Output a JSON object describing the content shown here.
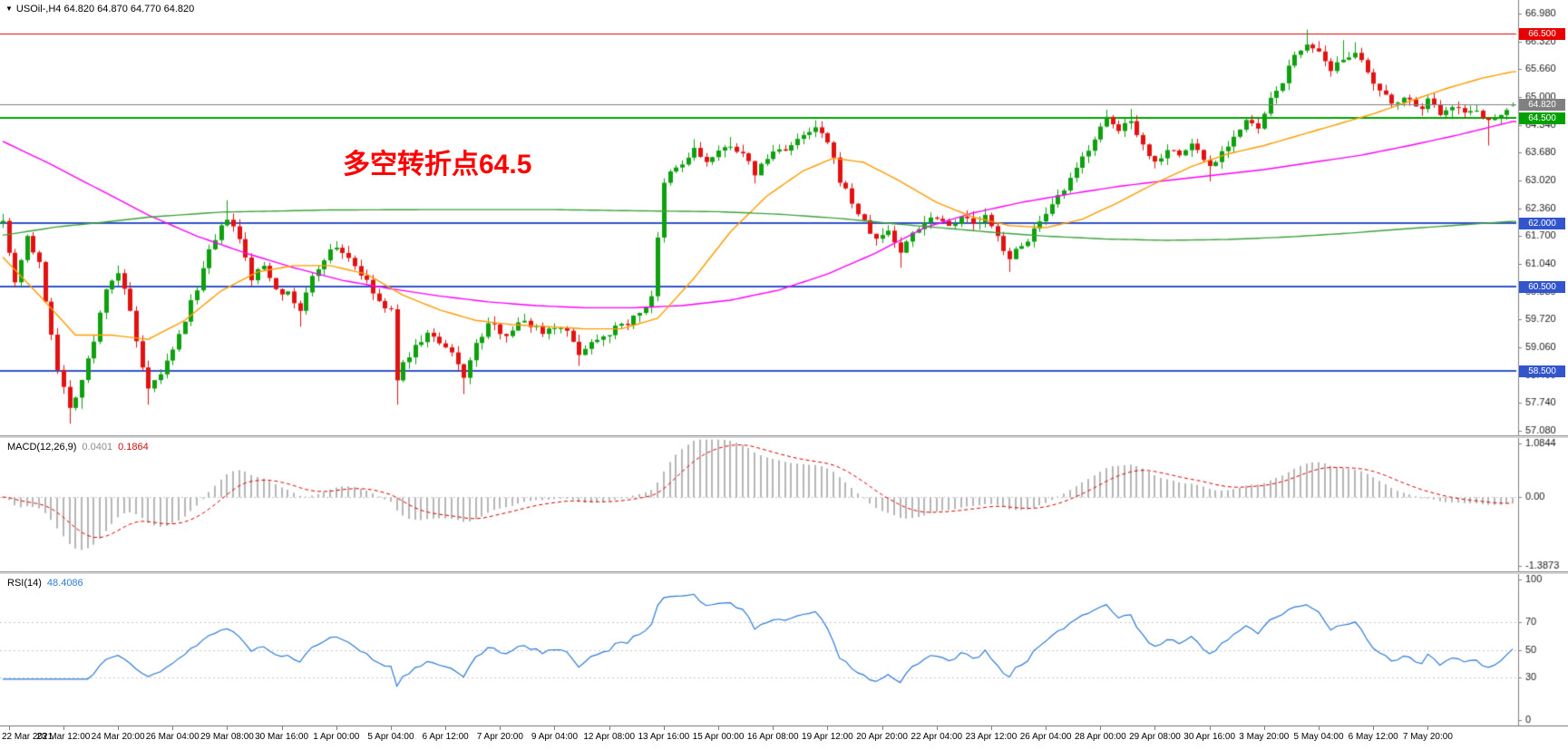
{
  "header": {
    "symbol_marker": "▼",
    "title": "USOil-,H4 64.820 64.870 64.770 64.820"
  },
  "annotation": {
    "text": "多空转折点64.5",
    "color": "#ff0000"
  },
  "chart_data": {
    "type": "candlestick",
    "symbol": "USOil-",
    "timeframe": "H4",
    "ohlc_display": {
      "open": "64.820",
      "high": "64.870",
      "low": "64.770",
      "close": "64.820"
    },
    "num_candles": 250,
    "seed": 7,
    "noise": 0.09,
    "wick": 0.17,
    "up_color": "#0ea00e",
    "down_color": "#e31212",
    "x_labels": [
      "22 Mar 2021",
      "23 Mar 12:00",
      "24 Mar 20:00",
      "26 Mar 04:00",
      "29 Mar 08:00",
      "30 Mar 16:00",
      "1 Apr 00:00",
      "5 Apr 04:00",
      "6 Apr 12:00",
      "7 Apr 20:00",
      "9 Apr 04:00",
      "12 Apr 08:00",
      "13 Apr 16:00",
      "15 Apr 00:00",
      "16 Apr 08:00",
      "19 Apr 12:00",
      "20 Apr 20:00",
      "22 Apr 04:00",
      "23 Apr 12:00",
      "26 Apr 04:00",
      "28 Apr 00:00",
      "29 Apr 08:00",
      "30 Apr 16:00",
      "3 May 20:00",
      "5 May 04:00",
      "6 May 12:00",
      "7 May 20:00"
    ],
    "label_start_index": 1,
    "label_every": 9,
    "close_anchors": [
      [
        0,
        62.15
      ],
      [
        1,
        61.3
      ],
      [
        2,
        60.65
      ],
      [
        4,
        61.7
      ],
      [
        6,
        61.0
      ],
      [
        7,
        60.2
      ],
      [
        9,
        58.6
      ],
      [
        11,
        57.6
      ],
      [
        13,
        58.3
      ],
      [
        15,
        59.2
      ],
      [
        17,
        60.5
      ],
      [
        19,
        60.85
      ],
      [
        21,
        59.9
      ],
      [
        23,
        58.5
      ],
      [
        24,
        58.0
      ],
      [
        26,
        58.45
      ],
      [
        28,
        58.95
      ],
      [
        31,
        60.1
      ],
      [
        34,
        61.3
      ],
      [
        37,
        62.15
      ],
      [
        39,
        61.6
      ],
      [
        41,
        60.7
      ],
      [
        43,
        61.0
      ],
      [
        45,
        60.5
      ],
      [
        47,
        60.3
      ],
      [
        49,
        59.95
      ],
      [
        51,
        60.7
      ],
      [
        53,
        61.2
      ],
      [
        55,
        61.45
      ],
      [
        57,
        61.2
      ],
      [
        59,
        60.8
      ],
      [
        61,
        60.35
      ],
      [
        63,
        59.95
      ],
      [
        64,
        59.9
      ],
      [
        65,
        58.35
      ],
      [
        67,
        58.9
      ],
      [
        70,
        59.4
      ],
      [
        73,
        59.0
      ],
      [
        74,
        58.9
      ],
      [
        76,
        58.4
      ],
      [
        78,
        59.1
      ],
      [
        80,
        59.6
      ],
      [
        83,
        59.4
      ],
      [
        86,
        59.7
      ],
      [
        89,
        59.45
      ],
      [
        92,
        59.6
      ],
      [
        95,
        58.95
      ],
      [
        98,
        59.3
      ],
      [
        101,
        59.5
      ],
      [
        104,
        59.75
      ],
      [
        106,
        60.05
      ],
      [
        107,
        60.3
      ],
      [
        109,
        62.9
      ],
      [
        110,
        63.2
      ],
      [
        112,
        63.4
      ],
      [
        114,
        63.75
      ],
      [
        116,
        63.45
      ],
      [
        118,
        63.65
      ],
      [
        120,
        63.9
      ],
      [
        122,
        63.6
      ],
      [
        124,
        63.2
      ],
      [
        127,
        63.7
      ],
      [
        130,
        63.85
      ],
      [
        132,
        64.05
      ],
      [
        134,
        64.25
      ],
      [
        136,
        63.9
      ],
      [
        138,
        63.05
      ],
      [
        140,
        62.5
      ],
      [
        142,
        62.0
      ],
      [
        144,
        61.6
      ],
      [
        146,
        61.85
      ],
      [
        148,
        61.3
      ],
      [
        150,
        61.8
      ],
      [
        152,
        62.05
      ],
      [
        154,
        62.2
      ],
      [
        156,
        61.95
      ],
      [
        158,
        62.2
      ],
      [
        160,
        61.95
      ],
      [
        162,
        62.15
      ],
      [
        164,
        61.65
      ],
      [
        166,
        61.2
      ],
      [
        168,
        61.45
      ],
      [
        170,
        61.85
      ],
      [
        172,
        62.15
      ],
      [
        174,
        62.6
      ],
      [
        176,
        63.0
      ],
      [
        178,
        63.55
      ],
      [
        180,
        64.05
      ],
      [
        182,
        64.45
      ],
      [
        184,
        64.2
      ],
      [
        186,
        64.5
      ],
      [
        188,
        63.85
      ],
      [
        190,
        63.45
      ],
      [
        192,
        63.8
      ],
      [
        194,
        63.6
      ],
      [
        196,
        63.9
      ],
      [
        199,
        63.35
      ],
      [
        202,
        63.9
      ],
      [
        205,
        64.4
      ],
      [
        207,
        64.25
      ],
      [
        209,
        64.9
      ],
      [
        211,
        65.4
      ],
      [
        213,
        65.95
      ],
      [
        215,
        66.3
      ],
      [
        217,
        66.0
      ],
      [
        219,
        65.55
      ],
      [
        221,
        65.95
      ],
      [
        223,
        66.1
      ],
      [
        225,
        65.5
      ],
      [
        227,
        65.1
      ],
      [
        229,
        64.85
      ],
      [
        231,
        65.05
      ],
      [
        233,
        64.7
      ],
      [
        235,
        64.9
      ],
      [
        237,
        64.65
      ],
      [
        239,
        64.85
      ],
      [
        241,
        64.6
      ],
      [
        243,
        64.75
      ],
      [
        245,
        64.4
      ],
      [
        247,
        64.65
      ],
      [
        249,
        64.82
      ]
    ],
    "wick_overrides": {
      "11": {
        "low": 57.25
      },
      "13": {
        "low": 57.6
      },
      "19": {
        "high": 61.0
      },
      "24": {
        "low": 57.7
      },
      "37": {
        "high": 62.55
      },
      "49": {
        "low": 59.55
      },
      "65": {
        "low": 57.7
      },
      "76": {
        "low": 57.95
      },
      "95": {
        "low": 58.62
      },
      "114": {
        "high": 64.0
      },
      "120": {
        "high": 64.05
      },
      "124": {
        "low": 62.95
      },
      "134": {
        "high": 64.45
      },
      "148": {
        "low": 60.95
      },
      "166": {
        "low": 60.85
      },
      "182": {
        "high": 64.6
      },
      "186": {
        "high": 64.72
      },
      "199": {
        "low": 63.0
      },
      "215": {
        "high": 66.6
      },
      "221": {
        "high": 66.35
      },
      "223": {
        "high": 66.3
      },
      "245": {
        "low": 63.85
      }
    },
    "main": {
      "ylim": [
        56.973,
        67.303
      ],
      "y_ticks": [
        "66.980",
        "66.320",
        "65.660",
        "65.000",
        "64.340",
        "63.680",
        "63.020",
        "62.360",
        "61.700",
        "61.040",
        "60.380",
        "59.720",
        "59.060",
        "58.400",
        "57.740",
        "57.080"
      ],
      "hlines": [
        {
          "price": 66.5,
          "label": "66.500",
          "color": "#e80000",
          "width": 1
        },
        {
          "price": 64.5,
          "label": "64.500",
          "color": "#00a000",
          "width": 2
        },
        {
          "price": 62.0,
          "label": "62.000",
          "color": "#3254cc",
          "width": 2
        },
        {
          "price": 60.5,
          "label": "60.500",
          "color": "#3254cc",
          "width": 2
        },
        {
          "price": 58.5,
          "label": "58.500",
          "color": "#3254cc",
          "width": 2
        }
      ],
      "bid_line": {
        "price": 64.82,
        "label": "64.820",
        "color": "#808080"
      },
      "ma_lines": [
        {
          "name": "ma-slow-magenta",
          "color": "#ff00ff",
          "width": 1.4,
          "anchors": [
            [
              0,
              63.95
            ],
            [
              8,
              63.4
            ],
            [
              16,
              62.8
            ],
            [
              24,
              62.2
            ],
            [
              32,
              61.7
            ],
            [
              40,
              61.3
            ],
            [
              48,
              60.95
            ],
            [
              56,
              60.65
            ],
            [
              64,
              60.45
            ],
            [
              72,
              60.28
            ],
            [
              80,
              60.14
            ],
            [
              88,
              60.05
            ],
            [
              96,
              60.0
            ],
            [
              104,
              60.0
            ],
            [
              112,
              60.05
            ],
            [
              120,
              60.18
            ],
            [
              128,
              60.42
            ],
            [
              136,
              60.8
            ],
            [
              144,
              61.3
            ],
            [
              152,
              61.9
            ],
            [
              160,
              62.25
            ],
            [
              168,
              62.5
            ],
            [
              176,
              62.7
            ],
            [
              184,
              62.88
            ],
            [
              192,
              63.02
            ],
            [
              200,
              63.15
            ],
            [
              208,
              63.28
            ],
            [
              216,
              63.45
            ],
            [
              224,
              63.62
            ],
            [
              232,
              63.85
            ],
            [
              240,
              64.1
            ],
            [
              249,
              64.42
            ]
          ]
        },
        {
          "name": "ma-medium-orange",
          "color": "#ff9b00",
          "width": 1.4,
          "anchors": [
            [
              0,
              61.2
            ],
            [
              6,
              60.3
            ],
            [
              12,
              59.35
            ],
            [
              18,
              59.35
            ],
            [
              24,
              59.25
            ],
            [
              30,
              59.7
            ],
            [
              36,
              60.4
            ],
            [
              42,
              60.85
            ],
            [
              48,
              61.0
            ],
            [
              54,
              61.0
            ],
            [
              60,
              60.8
            ],
            [
              66,
              60.3
            ],
            [
              72,
              59.95
            ],
            [
              78,
              59.7
            ],
            [
              84,
              59.6
            ],
            [
              90,
              59.55
            ],
            [
              96,
              59.5
            ],
            [
              102,
              59.5
            ],
            [
              108,
              59.75
            ],
            [
              114,
              60.7
            ],
            [
              120,
              61.8
            ],
            [
              126,
              62.65
            ],
            [
              132,
              63.25
            ],
            [
              137,
              63.55
            ],
            [
              142,
              63.45
            ],
            [
              148,
              63.0
            ],
            [
              154,
              62.5
            ],
            [
              160,
              62.15
            ],
            [
              166,
              61.95
            ],
            [
              172,
              61.9
            ],
            [
              178,
              62.1
            ],
            [
              184,
              62.5
            ],
            [
              190,
              62.95
            ],
            [
              196,
              63.35
            ],
            [
              202,
              63.65
            ],
            [
              208,
              63.85
            ],
            [
              214,
              64.1
            ],
            [
              220,
              64.35
            ],
            [
              226,
              64.6
            ],
            [
              232,
              64.9
            ],
            [
              238,
              65.2
            ],
            [
              244,
              65.45
            ],
            [
              249,
              65.6
            ]
          ]
        },
        {
          "name": "ma-long-green",
          "color": "#3da33d",
          "width": 1.4,
          "anchors": [
            [
              0,
              61.72
            ],
            [
              9,
              61.92
            ],
            [
              16,
              62.02
            ],
            [
              24,
              62.15
            ],
            [
              36,
              62.27
            ],
            [
              54,
              62.32
            ],
            [
              72,
              62.33
            ],
            [
              90,
              62.33
            ],
            [
              105,
              62.3
            ],
            [
              118,
              62.28
            ],
            [
              128,
              62.22
            ],
            [
              138,
              62.12
            ],
            [
              148,
              61.98
            ],
            [
              156,
              61.88
            ],
            [
              164,
              61.78
            ],
            [
              172,
              61.7
            ],
            [
              182,
              61.63
            ],
            [
              192,
              61.6
            ],
            [
              202,
              61.62
            ],
            [
              212,
              61.68
            ],
            [
              222,
              61.77
            ],
            [
              232,
              61.88
            ],
            [
              240,
              61.96
            ],
            [
              249,
              62.05
            ]
          ]
        }
      ]
    },
    "macd": {
      "label": "MACD(12,26,9)",
      "value_main": "0.0401",
      "value_signal": "0.1864",
      "fast": 12,
      "slow": 26,
      "signal": 9,
      "ylim": [
        -1.45,
        1.15
      ],
      "y_ticks": [
        "1.0844",
        "0.00",
        "-1.3873"
      ],
      "histogram_color": "#b6b6b6",
      "signal_color": "#dd0000"
    },
    "rsi": {
      "label": "RSI(14)",
      "value": "48.4086",
      "period": 14,
      "ylim": [
        -4,
        104
      ],
      "y_ticks": [
        "100",
        "70",
        "50",
        "30",
        "0"
      ],
      "levels": [
        30,
        50,
        70
      ],
      "line_color": "#2e7bd6"
    }
  }
}
